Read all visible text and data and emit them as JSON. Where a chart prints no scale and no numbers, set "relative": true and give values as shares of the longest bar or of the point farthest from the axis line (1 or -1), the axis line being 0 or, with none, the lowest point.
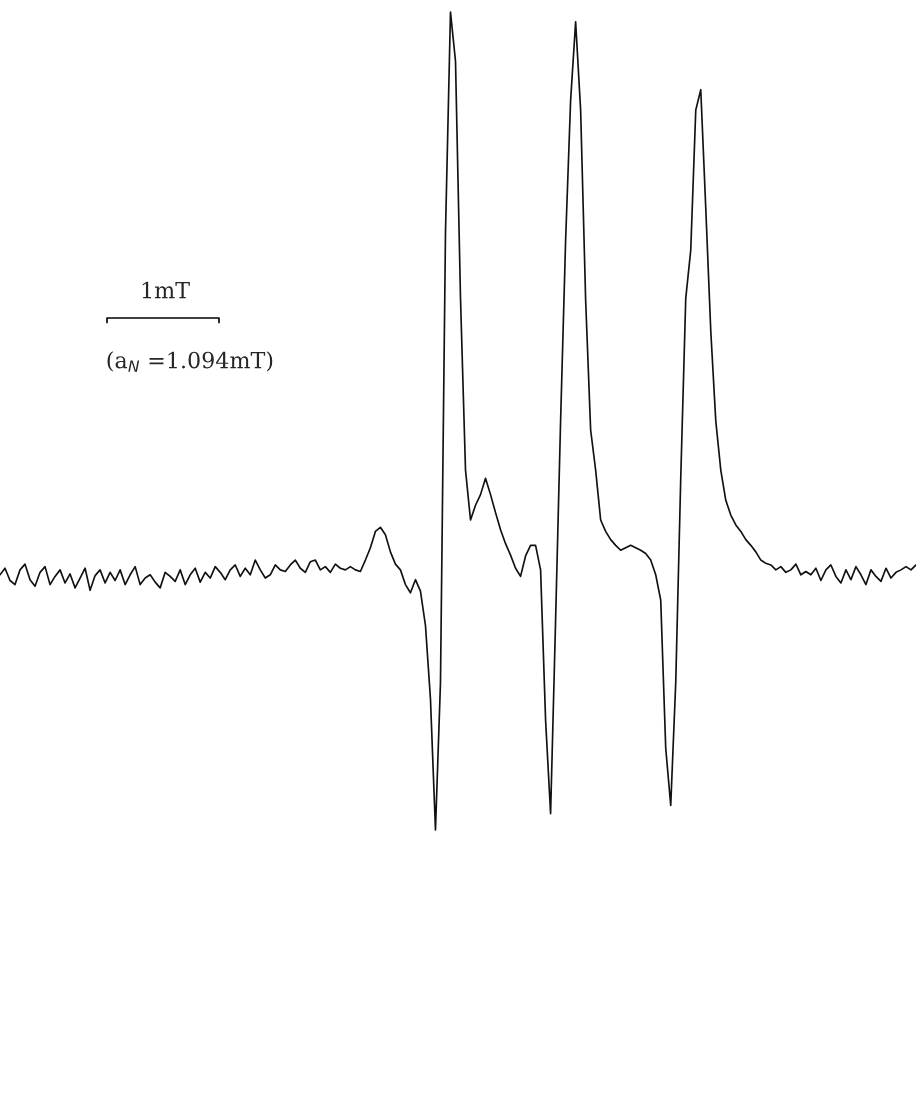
{
  "chart_data": {
    "type": "line",
    "relative": true,
    "tick_labels": false,
    "annotations": [
      "1mT",
      "(a$_{N}$ =1.094mT)"
    ],
    "categories": [
      null,
      null,
      null,
      null,
      null,
      null,
      null,
      null,
      null,
      null,
      null,
      null,
      null,
      null,
      null,
      null,
      null,
      null,
      null,
      null,
      null,
      null,
      null,
      null,
      null,
      null,
      null,
      null,
      null,
      null,
      null,
      null,
      null,
      null,
      null,
      null,
      null,
      null,
      null,
      null,
      null,
      null,
      null,
      null,
      null,
      null,
      null,
      null,
      null,
      null,
      null,
      null,
      null,
      null,
      null,
      null,
      null,
      null,
      null,
      null,
      null,
      null,
      null,
      null,
      null,
      null,
      null,
      null,
      null,
      null,
      null,
      null,
      null,
      null,
      null,
      null,
      null,
      null,
      null,
      null,
      null,
      null,
      null,
      null,
      null,
      null,
      null,
      null,
      null,
      null,
      null,
      null,
      null,
      null,
      null,
      null,
      null,
      null,
      null,
      null,
      null,
      null,
      null,
      null,
      null,
      null,
      null,
      null,
      null,
      null,
      null,
      null,
      null,
      null,
      null,
      null,
      null,
      null,
      null,
      null,
      null,
      null,
      null,
      null,
      null,
      null,
      null,
      null,
      null,
      null,
      null,
      null,
      null,
      null,
      null,
      null,
      null,
      null,
      null,
      null,
      null,
      null,
      null,
      null,
      null,
      null,
      null,
      null,
      null,
      null,
      null,
      null,
      null,
      null,
      null,
      null,
      null,
      null,
      null,
      null,
      null,
      null,
      null,
      null,
      null,
      null,
      null,
      null,
      null,
      null,
      null,
      null,
      null,
      null,
      null,
      null,
      null,
      null,
      null,
      null,
      null,
      null,
      null,
      null
    ],
    "series": [
      {
        "color": "#111111",
        "values": [
          0.312,
          0.32,
          0.305,
          0.3,
          0.318,
          0.325,
          0.306,
          0.298,
          0.315,
          0.322,
          0.3,
          0.31,
          0.318,
          0.302,
          0.313,
          0.296,
          0.308,
          0.32,
          0.293,
          0.311,
          0.318,
          0.302,
          0.315,
          0.305,
          0.318,
          0.3,
          0.312,
          0.322,
          0.3,
          0.308,
          0.312,
          0.303,
          0.296,
          0.315,
          0.31,
          0.304,
          0.318,
          0.3,
          0.312,
          0.32,
          0.303,
          0.315,
          0.308,
          0.322,
          0.315,
          0.306,
          0.318,
          0.324,
          0.31,
          0.32,
          0.312,
          0.33,
          0.318,
          0.308,
          0.312,
          0.324,
          0.318,
          0.316,
          0.324,
          0.33,
          0.32,
          0.315,
          0.328,
          0.33,
          0.318,
          0.322,
          0.315,
          0.325,
          0.32,
          0.318,
          0.322,
          0.318,
          0.316,
          0.33,
          0.345,
          0.365,
          0.37,
          0.361,
          0.34,
          0.325,
          0.318,
          0.3,
          0.29,
          0.306,
          0.292,
          0.25,
          0.16,
          0,
          0.18,
          0.73,
          1.0,
          0.94,
          0.65,
          0.44,
          0.379,
          0.397,
          0.41,
          0.43,
          0.41,
          0.388,
          0.367,
          0.35,
          0.336,
          0.32,
          0.31,
          0.335,
          0.348,
          0.348,
          0.318,
          0.134,
          0.02,
          0.257,
          0.501,
          0.721,
          0.892,
          0.988,
          0.88,
          0.648,
          0.489,
          0.44,
          0.379,
          0.365,
          0.355,
          0.348,
          0.342,
          0.345,
          0.348,
          0.345,
          0.342,
          0.338,
          0.33,
          0.312,
          0.281,
          0.1,
          0.03,
          0.18,
          0.43,
          0.65,
          0.709,
          0.88,
          0.905,
          0.76,
          0.61,
          0.5,
          0.44,
          0.403,
          0.385,
          0.373,
          0.365,
          0.355,
          0.348,
          0.34,
          0.33,
          0.326,
          0.324,
          0.318,
          0.322,
          0.315,
          0.318,
          0.325,
          0.312,
          0.316,
          0.312,
          0.32,
          0.305,
          0.318,
          0.324,
          0.31,
          0.302,
          0.318,
          0.306,
          0.322,
          0.312,
          0.3,
          0.318,
          0.31,
          0.304,
          0.32,
          0.308,
          0.315,
          0.318,
          0.322,
          0.318,
          0.324
        ]
      }
    ]
  }
}
